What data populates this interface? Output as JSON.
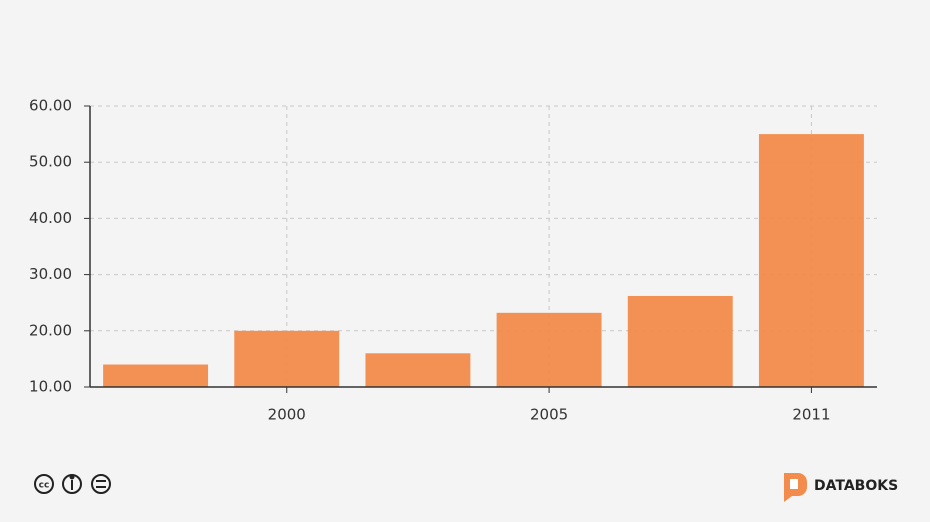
{
  "chart_data": {
    "type": "bar",
    "categories": [
      null,
      "2000",
      null,
      "2005",
      null,
      "2011"
    ],
    "values": [
      14,
      20,
      16,
      23.2,
      26.2,
      55
    ],
    "color": "#f28b4c",
    "ylim": [
      10,
      60
    ],
    "yticks": [
      {
        "value": 10,
        "label": "10.00"
      },
      {
        "value": 20,
        "label": "20.00"
      },
      {
        "value": 30,
        "label": "30.00"
      },
      {
        "value": 40,
        "label": "40.00"
      },
      {
        "value": 50,
        "label": "50.00"
      },
      {
        "value": 60,
        "label": "60.00"
      }
    ],
    "grid": true
  },
  "brand": "DATABOKS"
}
